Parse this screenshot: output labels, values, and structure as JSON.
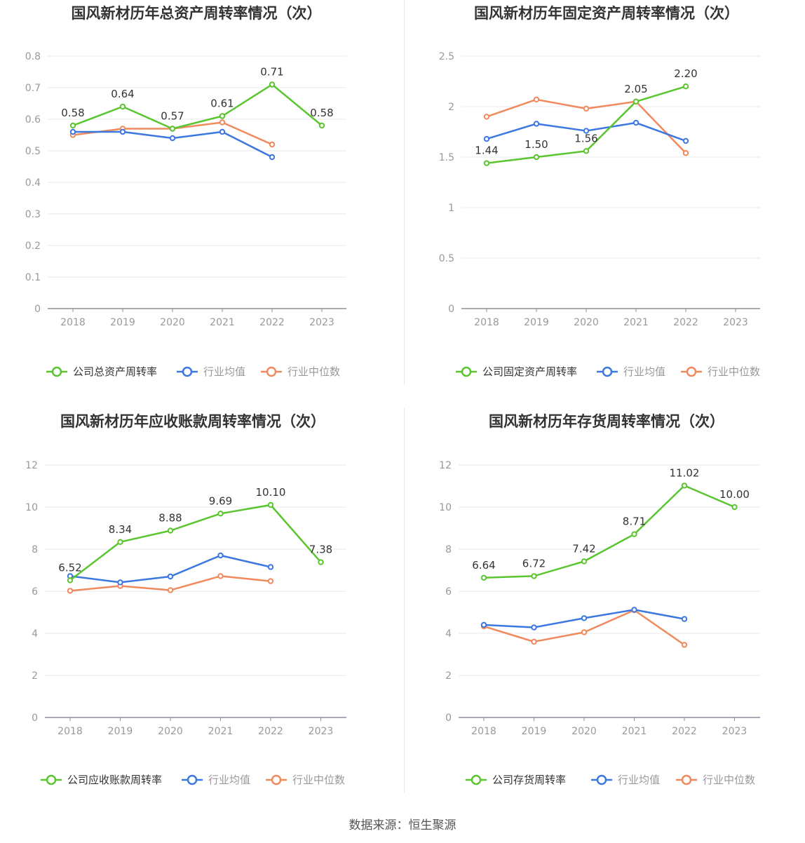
{
  "source_text": "数据来源：恒生聚源",
  "colors": {
    "company": "#5ac52f",
    "industry_avg": "#3b78e0",
    "industry_median": "#f08a5d",
    "grid": "#e6e8ee",
    "axis": "#8a8f9c"
  },
  "chart_data": [
    {
      "type": "line",
      "title": "国风新材历年总资产周转率情况（次）",
      "categories": [
        "2018",
        "2019",
        "2020",
        "2021",
        "2022",
        "2023"
      ],
      "ylim": [
        0,
        0.8
      ],
      "yticks": [
        "0",
        "0.1",
        "0.2",
        "0.3",
        "0.4",
        "0.5",
        "0.6",
        "0.7",
        "0.8"
      ],
      "series": [
        {
          "name": "公司总资产周转率",
          "values": [
            0.58,
            0.64,
            0.57,
            0.61,
            0.71,
            0.58
          ],
          "labels": [
            "0.58",
            "0.64",
            "0.57",
            "0.61",
            "0.71",
            "0.58"
          ]
        },
        {
          "name": "行业均值",
          "values": [
            0.56,
            0.56,
            0.54,
            0.56,
            0.48,
            null
          ]
        },
        {
          "name": "行业中位数",
          "values": [
            0.55,
            0.57,
            0.57,
            0.59,
            0.52,
            null
          ]
        }
      ],
      "legend": "bottom"
    },
    {
      "type": "line",
      "title": "国风新材历年固定资产周转率情况（次）",
      "categories": [
        "2018",
        "2019",
        "2020",
        "2021",
        "2022",
        "2023"
      ],
      "ylim": [
        0,
        2.5
      ],
      "yticks": [
        "0",
        "0.5",
        "1",
        "1.5",
        "2",
        "2.5"
      ],
      "series": [
        {
          "name": "公司固定资产周转率",
          "values": [
            1.44,
            1.5,
            1.56,
            2.05,
            2.2,
            null
          ],
          "labels": [
            "1.44",
            "1.50",
            "1.56",
            "2.05",
            "2.20",
            null
          ]
        },
        {
          "name": "行业均值",
          "values": [
            1.68,
            1.83,
            1.76,
            1.84,
            1.66,
            null
          ]
        },
        {
          "name": "行业中位数",
          "values": [
            1.9,
            2.07,
            1.98,
            2.05,
            1.54,
            null
          ]
        }
      ],
      "legend": "bottom"
    },
    {
      "type": "line",
      "title": "国风新材历年应收账款周转率情况（次）",
      "categories": [
        "2018",
        "2019",
        "2020",
        "2021",
        "2022",
        "2023"
      ],
      "ylim": [
        0,
        12
      ],
      "yticks": [
        "0",
        "2",
        "4",
        "6",
        "8",
        "10",
        "12"
      ],
      "series": [
        {
          "name": "公司应收账款周转率",
          "values": [
            6.52,
            8.34,
            8.88,
            9.69,
            10.1,
            7.38
          ],
          "labels": [
            "6.52",
            "8.34",
            "8.88",
            "9.69",
            "10.10",
            "7.38"
          ]
        },
        {
          "name": "行业均值",
          "values": [
            6.72,
            6.42,
            6.7,
            7.7,
            7.15,
            null
          ]
        },
        {
          "name": "行业中位数",
          "values": [
            6.02,
            6.25,
            6.05,
            6.72,
            6.48,
            null
          ]
        }
      ],
      "legend": "bottom"
    },
    {
      "type": "line",
      "title": "国风新材历年存货周转率情况（次）",
      "categories": [
        "2018",
        "2019",
        "2020",
        "2021",
        "2022",
        "2023"
      ],
      "ylim": [
        0,
        12
      ],
      "yticks": [
        "0",
        "2",
        "4",
        "6",
        "8",
        "10",
        "12"
      ],
      "series": [
        {
          "name": "公司存货周转率",
          "values": [
            6.64,
            6.72,
            7.42,
            8.71,
            11.02,
            10.0
          ],
          "labels": [
            "6.64",
            "6.72",
            "7.42",
            "8.71",
            "11.02",
            "10.00"
          ]
        },
        {
          "name": "行业均值",
          "values": [
            4.4,
            4.28,
            4.72,
            5.12,
            4.68,
            null
          ]
        },
        {
          "name": "行业中位数",
          "values": [
            4.33,
            3.6,
            4.05,
            5.1,
            3.45,
            null
          ]
        }
      ],
      "legend": "bottom"
    }
  ]
}
